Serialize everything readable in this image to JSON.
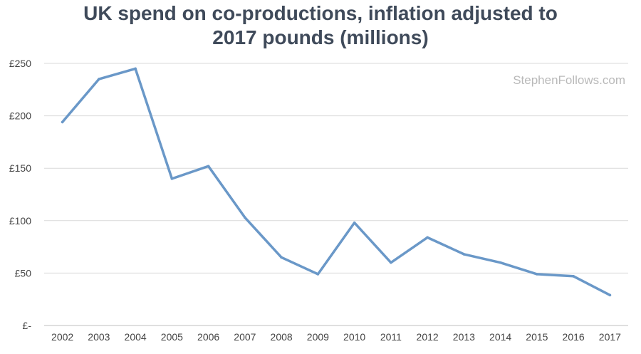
{
  "chart_data": {
    "type": "line",
    "title_lines": [
      "UK spend on co-productions, inflation adjusted to",
      "2017 pounds (millions)"
    ],
    "watermark": "StephenFollows.com",
    "categories": [
      "2002",
      "2003",
      "2004",
      "2005",
      "2006",
      "2007",
      "2008",
      "2009",
      "2010",
      "2011",
      "2012",
      "2013",
      "2014",
      "2015",
      "2016",
      "2017"
    ],
    "series": [
      {
        "name": "UK spend on co-productions",
        "color": "#6a98c8",
        "values": [
          194,
          235,
          245,
          140,
          152,
          103,
          65,
          49,
          98,
          60,
          84,
          68,
          60,
          49,
          47,
          29
        ]
      }
    ],
    "ylim": [
      0,
      250
    ],
    "yticks": [
      0,
      50,
      100,
      150,
      200,
      250
    ],
    "ytick_labels": [
      "£-",
      "£50",
      "£100",
      "£150",
      "£200",
      "£250"
    ],
    "grid": true,
    "xlabel": "",
    "ylabel": ""
  }
}
